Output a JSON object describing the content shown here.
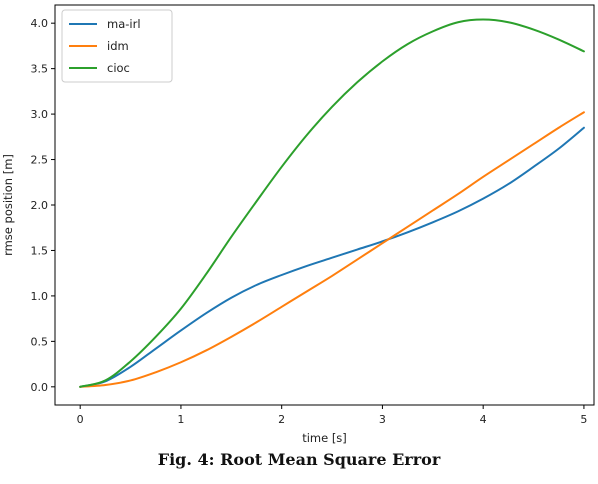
{
  "chart_data": {
    "type": "line",
    "xlabel": "time [s]",
    "ylabel": "rmse position [m]",
    "xlim": [
      -0.25,
      5.1
    ],
    "ylim": [
      -0.2,
      4.2
    ],
    "xticks": [
      0,
      1,
      2,
      3,
      4,
      5
    ],
    "xtick_labels": [
      "0",
      "1",
      "2",
      "3",
      "4",
      "5"
    ],
    "yticks": [
      0.0,
      0.5,
      1.0,
      1.5,
      2.0,
      2.5,
      3.0,
      3.5,
      4.0
    ],
    "ytick_labels": [
      "0.0",
      "0.5",
      "1.0",
      "1.5",
      "2.0",
      "2.5",
      "3.0",
      "3.5",
      "4.0"
    ],
    "grid": false,
    "legend_position": "top-left",
    "x": [
      0,
      0.25,
      0.5,
      0.75,
      1.0,
      1.25,
      1.5,
      1.75,
      2.0,
      2.25,
      2.5,
      2.75,
      3.0,
      3.25,
      3.5,
      3.75,
      4.0,
      4.25,
      4.5,
      4.75,
      5.0
    ],
    "series": [
      {
        "name": "ma-irl",
        "color": "#1f77b4",
        "values": [
          0.0,
          0.06,
          0.22,
          0.42,
          0.62,
          0.81,
          0.98,
          1.12,
          1.23,
          1.33,
          1.42,
          1.51,
          1.6,
          1.7,
          1.81,
          1.93,
          2.07,
          2.23,
          2.42,
          2.62,
          2.85
        ]
      },
      {
        "name": "idm",
        "color": "#ff7f0e",
        "values": [
          0.0,
          0.02,
          0.07,
          0.16,
          0.27,
          0.4,
          0.55,
          0.71,
          0.88,
          1.05,
          1.22,
          1.4,
          1.58,
          1.76,
          1.94,
          2.12,
          2.31,
          2.49,
          2.67,
          2.85,
          3.02
        ]
      },
      {
        "name": "cioc",
        "color": "#2ca02c",
        "values": [
          0.0,
          0.07,
          0.28,
          0.55,
          0.86,
          1.24,
          1.65,
          2.04,
          2.42,
          2.77,
          3.08,
          3.35,
          3.58,
          3.77,
          3.91,
          4.01,
          4.04,
          4.01,
          3.93,
          3.82,
          3.69
        ]
      }
    ]
  },
  "caption": "Fig. 4: Root Mean Square Error"
}
